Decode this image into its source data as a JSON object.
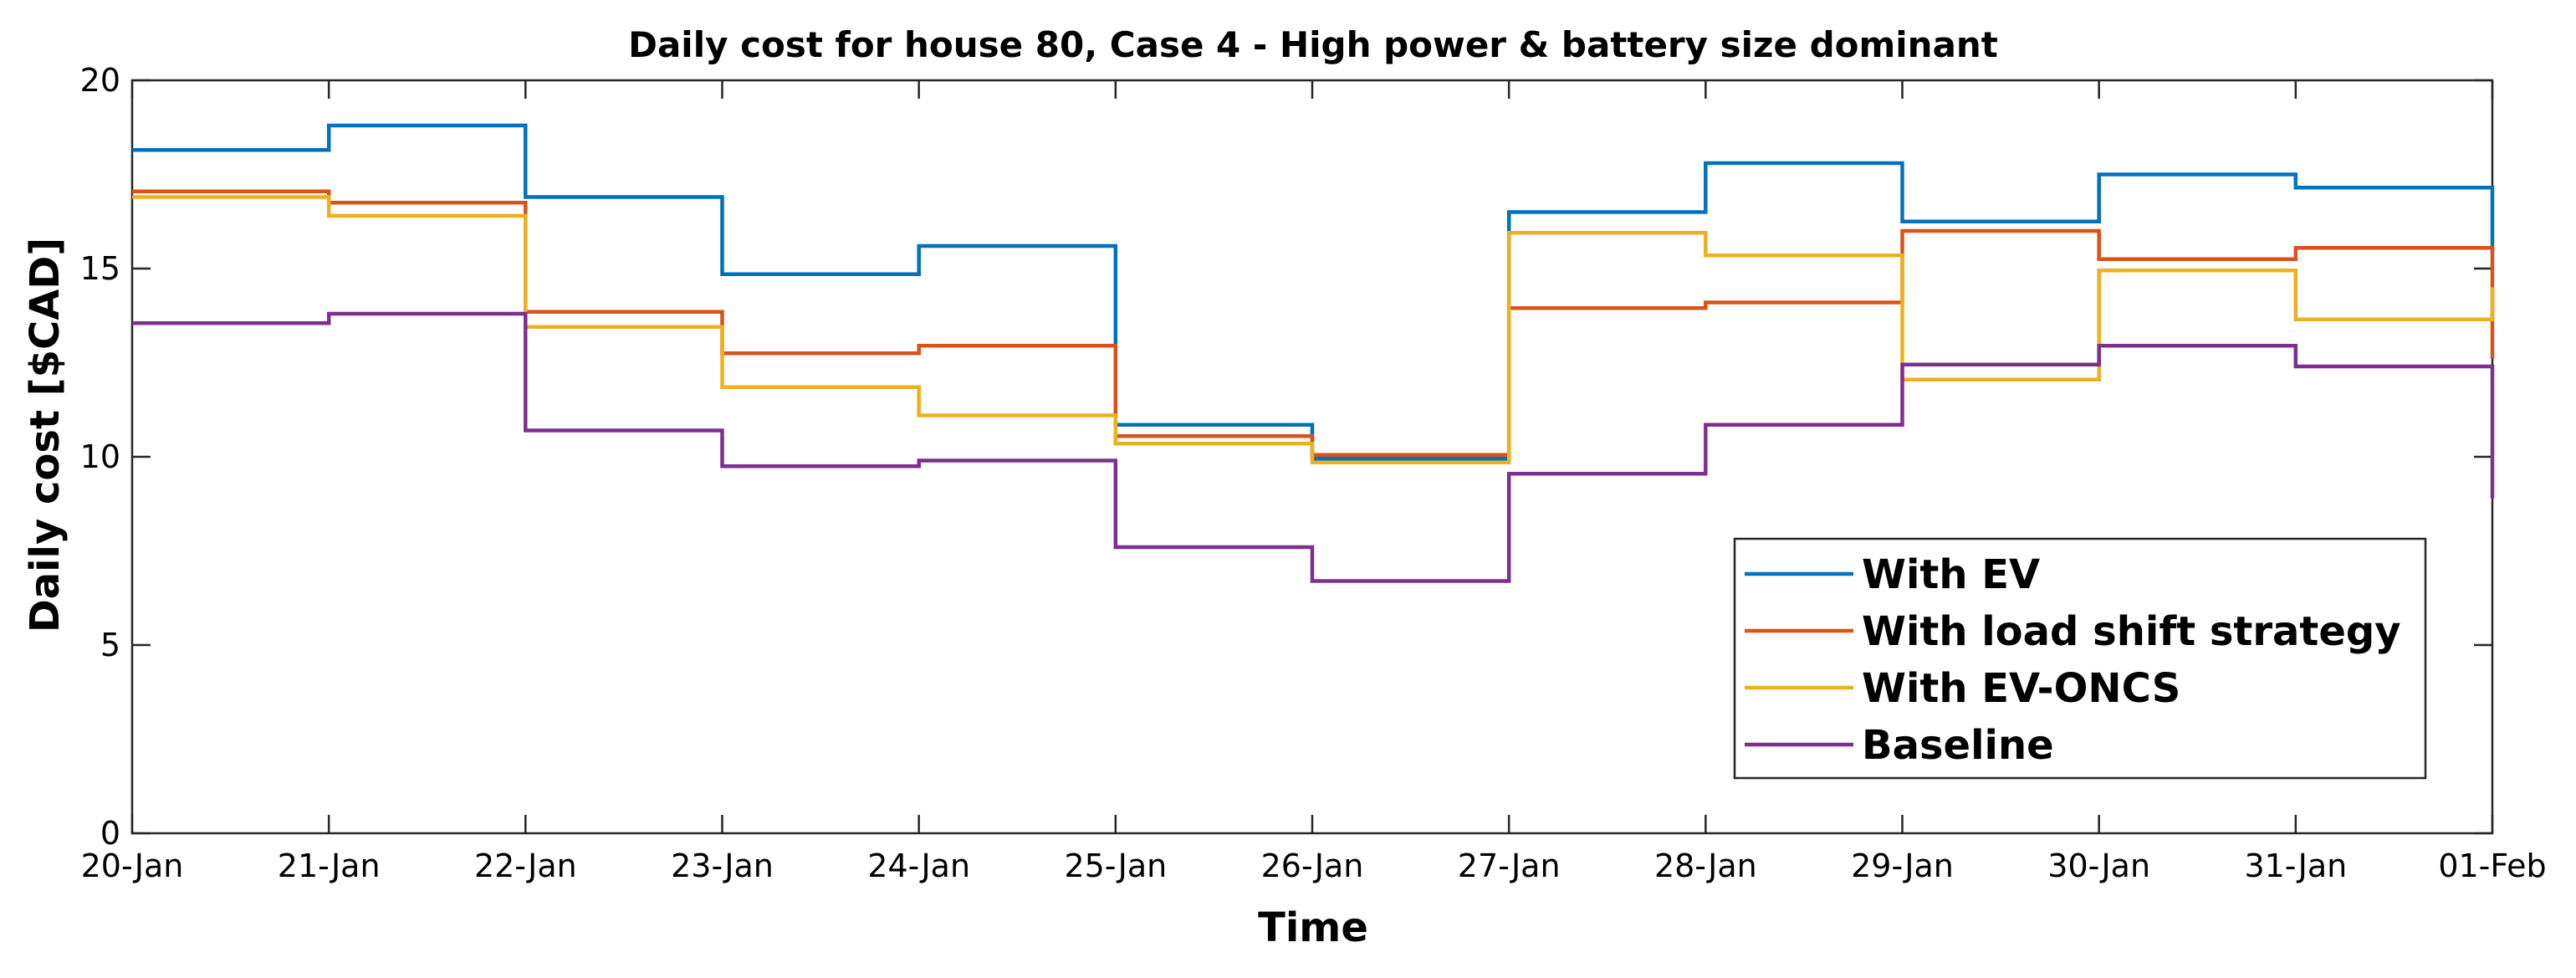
{
  "chart_data": {
    "type": "line",
    "step": true,
    "title": "Daily cost for house 80, Case 4 - High power & battery size dominant",
    "xlabel": "Time",
    "ylabel": "Daily cost [$CAD]",
    "ylim": [
      0,
      20
    ],
    "yticks": [
      "0",
      "5",
      "10",
      "15",
      "20"
    ],
    "x_tick_labels": [
      "20-Jan",
      "21-Jan",
      "22-Jan",
      "23-Jan",
      "24-Jan",
      "25-Jan",
      "26-Jan",
      "27-Jan",
      "28-Jan",
      "29-Jan",
      "30-Jan",
      "31-Jan",
      "01-Feb"
    ],
    "legend_position": "lower-right",
    "grid": false,
    "series": [
      {
        "name": "With EV",
        "color": "#0072BD",
        "values": [
          18.15,
          18.8,
          16.9,
          14.85,
          15.6,
          10.85,
          9.95,
          16.5,
          17.8,
          16.25,
          17.5,
          17.15
        ],
        "end_value": 15.4
      },
      {
        "name": "With load shift strategy",
        "color": "#D95319",
        "values": [
          17.05,
          16.75,
          13.85,
          12.75,
          12.95,
          10.55,
          10.05,
          13.95,
          14.1,
          16.0,
          15.25,
          15.55
        ],
        "end_value": 12.6
      },
      {
        "name": "With EV-ONCS",
        "color": "#EDB120",
        "values": [
          16.9,
          16.4,
          13.45,
          11.85,
          11.1,
          10.35,
          9.85,
          15.95,
          15.35,
          12.05,
          14.95,
          13.65
        ],
        "end_value": 14.5
      },
      {
        "name": "Baseline",
        "color": "#7E2F8E",
        "values": [
          13.55,
          13.8,
          10.7,
          9.75,
          9.9,
          7.6,
          6.7,
          9.55,
          10.85,
          12.45,
          12.95,
          12.4
        ],
        "end_value": 8.9
      }
    ]
  }
}
